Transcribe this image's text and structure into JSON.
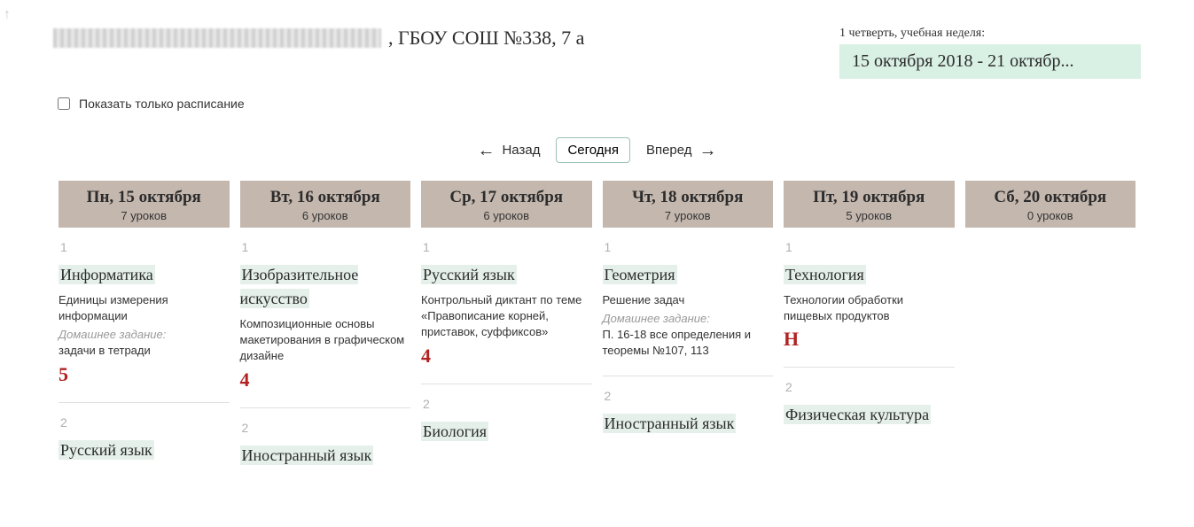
{
  "header": {
    "school_title": ", ГБОУ СОШ №338, 7 а",
    "quarter_label": "1 четверть, учебная неделя:",
    "date_range": "15 октября 2018 - 21 октябр..."
  },
  "checkbox": {
    "label": "Показать только расписание"
  },
  "nav": {
    "back_label": "Назад",
    "today_label": "Сегодня",
    "forward_label": "Вперед"
  },
  "days": [
    {
      "title": "Пн, 15 октября",
      "sub": "7 уроков"
    },
    {
      "title": "Вт, 16 октября",
      "sub": "6 уроков"
    },
    {
      "title": "Ср, 17 октября",
      "sub": "6 уроков"
    },
    {
      "title": "Чт, 18 октября",
      "sub": "7 уроков"
    },
    {
      "title": "Пт, 19 октября",
      "sub": "5 уроков"
    },
    {
      "title": "Сб, 20 октября",
      "sub": "0 уроков"
    }
  ],
  "lessons": {
    "mon": {
      "l1": {
        "num": "1",
        "subject": "Информатика",
        "topic": "Единицы измерения информации",
        "hw_label": "Домашнее задание:",
        "hw": "задачи в тетради",
        "grade": "5"
      },
      "l2": {
        "num": "2",
        "subject": "Русский язык"
      }
    },
    "tue": {
      "l1": {
        "num": "1",
        "subject": "Изобразительное искусство",
        "topic": "Композиционные основы макетирования в графическом дизайне",
        "grade": "4"
      },
      "l2": {
        "num": "2",
        "subject": "Иностранный язык"
      }
    },
    "wed": {
      "l1": {
        "num": "1",
        "subject": "Русский язык",
        "topic": "Контрольный диктант по теме «Правописание корней, приставок, суффиксов»",
        "grade": "4"
      },
      "l2": {
        "num": "2",
        "subject": "Биология"
      }
    },
    "thu": {
      "l1": {
        "num": "1",
        "subject": "Геометрия",
        "topic": "Решение задач",
        "hw_label": "Домашнее задание:",
        "hw": "П. 16-18 все определения и теоремы №107, 113"
      },
      "l2": {
        "num": "2",
        "subject": "Иностранный язык"
      }
    },
    "fri": {
      "l1": {
        "num": "1",
        "subject": "Технология",
        "topic": "Технологии обработки пищевых продуктов",
        "grade": "Н"
      },
      "l2": {
        "num": "2",
        "subject": "Физическая культура"
      }
    }
  },
  "colors": {
    "header_bg": "#c4b7ae",
    "subject_bg": "#e5f0ea",
    "date_range_bg": "#d9f0e4",
    "grade_color": "#b22222"
  }
}
